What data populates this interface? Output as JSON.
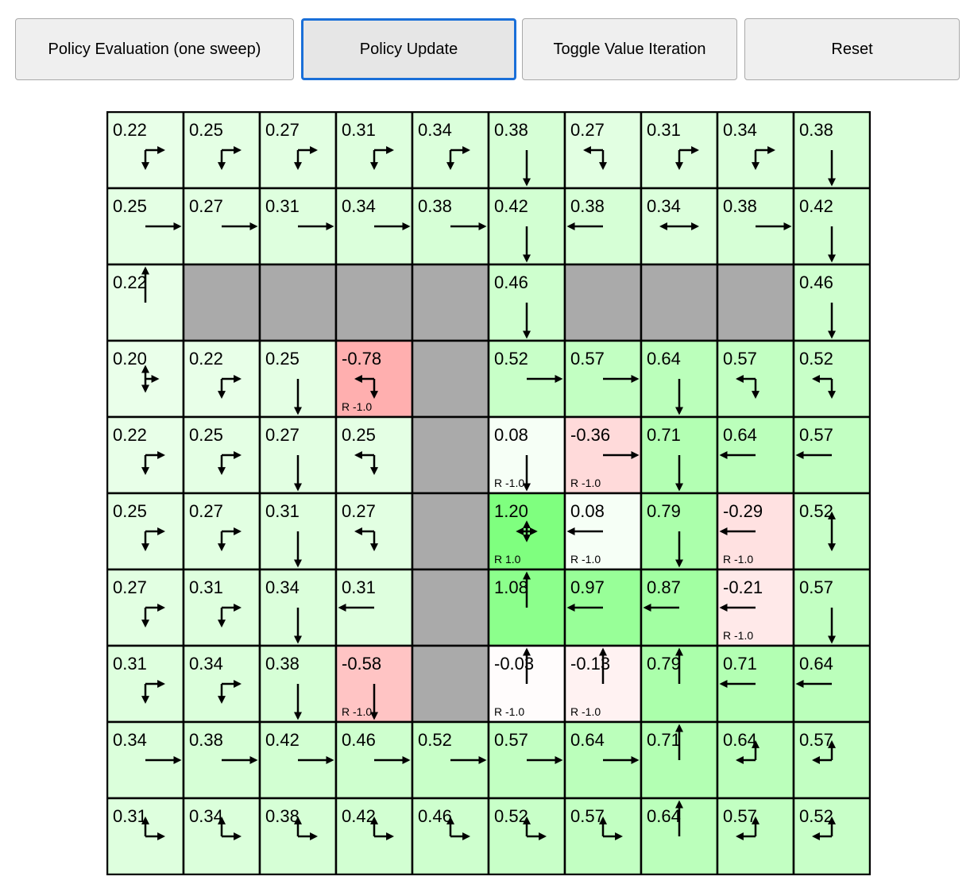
{
  "toolbar": {
    "eval_label": "Policy Evaluation (one sweep)",
    "update_label": "Policy Update",
    "toggle_label": "Toggle Value Iteration",
    "reset_label": "Reset"
  },
  "colors": {
    "wall": "#aaaaaa",
    "grid_line": "#000000",
    "focus": "#1a6fd8"
  },
  "gridworld": {
    "values": [
      [
        "0.22",
        "0.25",
        "0.27",
        "0.31",
        "0.34",
        "0.38",
        "0.27",
        "0.31",
        "0.34",
        "0.38"
      ],
      [
        "0.25",
        "0.27",
        "0.31",
        "0.34",
        "0.38",
        "0.42",
        "0.38",
        "0.34",
        "0.38",
        "0.42"
      ],
      [
        "0.22",
        null,
        null,
        null,
        null,
        "0.46",
        null,
        null,
        null,
        "0.46"
      ],
      [
        "0.20",
        "0.22",
        "0.25",
        "-0.78",
        null,
        "0.52",
        "0.57",
        "0.64",
        "0.57",
        "0.52"
      ],
      [
        "0.22",
        "0.25",
        "0.27",
        "0.25",
        null,
        "0.08",
        "-0.36",
        "0.71",
        "0.64",
        "0.57"
      ],
      [
        "0.25",
        "0.27",
        "0.31",
        "0.27",
        null,
        "1.20",
        "0.08",
        "0.79",
        "-0.29",
        "0.52"
      ],
      [
        "0.27",
        "0.31",
        "0.34",
        "0.31",
        null,
        "1.08",
        "0.97",
        "0.87",
        "-0.21",
        "0.57"
      ],
      [
        "0.31",
        "0.34",
        "0.38",
        "-0.58",
        null,
        "-0.03",
        "-0.13",
        "0.79",
        "0.71",
        "0.64"
      ],
      [
        "0.34",
        "0.38",
        "0.42",
        "0.46",
        "0.52",
        "0.57",
        "0.64",
        "0.71",
        "0.64",
        "0.57"
      ],
      [
        "0.31",
        "0.34",
        "0.38",
        "0.42",
        "0.46",
        "0.52",
        "0.57",
        "0.64",
        "0.57",
        "0.52"
      ]
    ],
    "policy": [
      [
        "DR",
        "DR",
        "DR",
        "DR",
        "DR",
        "D",
        "LD",
        "DR",
        "DR",
        "D"
      ],
      [
        "R",
        "R",
        "R",
        "R",
        "R",
        "D",
        "L",
        "LR",
        "R",
        "D"
      ],
      [
        "U",
        "",
        "",
        "",
        "",
        "D",
        "",
        "",
        "",
        "D"
      ],
      [
        "UDR",
        "DR",
        "D",
        "LD",
        "",
        "R",
        "R",
        "D",
        "LD",
        "LD"
      ],
      [
        "DR",
        "DR",
        "D",
        "LD",
        "",
        "D",
        "R",
        "D",
        "L",
        "L"
      ],
      [
        "DR",
        "DR",
        "D",
        "LD",
        "",
        "LURD",
        "L",
        "D",
        "L",
        "UD"
      ],
      [
        "DR",
        "DR",
        "D",
        "L",
        "",
        "U",
        "L",
        "L",
        "L",
        "D"
      ],
      [
        "DR",
        "DR",
        "D",
        "D",
        "",
        "U",
        "U",
        "U",
        "L",
        "L"
      ],
      [
        "R",
        "R",
        "R",
        "R",
        "R",
        "R",
        "R",
        "U",
        "LU",
        "LU"
      ],
      [
        "UR",
        "UR",
        "UR",
        "UR",
        "UR",
        "UR",
        "UR",
        "U",
        "LU",
        "LU"
      ]
    ],
    "rewards": [
      {
        "row": 3,
        "col": 3,
        "label": "R -1.0"
      },
      {
        "row": 4,
        "col": 5,
        "label": "R -1.0"
      },
      {
        "row": 4,
        "col": 6,
        "label": "R -1.0"
      },
      {
        "row": 5,
        "col": 5,
        "label": "R 1.0"
      },
      {
        "row": 5,
        "col": 6,
        "label": "R -1.0"
      },
      {
        "row": 5,
        "col": 8,
        "label": "R -1.0"
      },
      {
        "row": 6,
        "col": 8,
        "label": "R -1.0"
      },
      {
        "row": 7,
        "col": 3,
        "label": "R -1.0"
      },
      {
        "row": 7,
        "col": 5,
        "label": "R -1.0"
      },
      {
        "row": 7,
        "col": 6,
        "label": "R -1.0"
      }
    ]
  }
}
